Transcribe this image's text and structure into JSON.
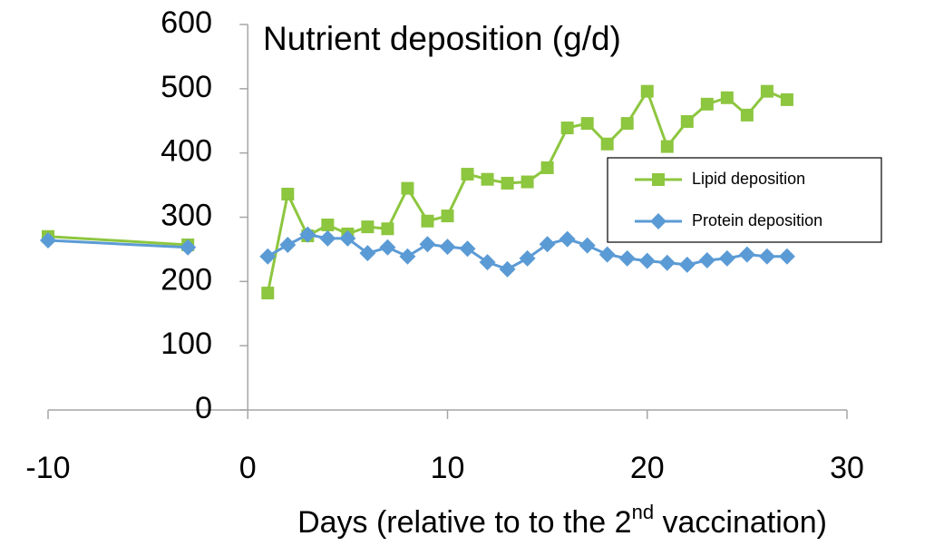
{
  "chart_data": {
    "type": "line",
    "title": "Nutrient deposition (g/d)",
    "xlabel": {
      "main": "Days (relative to to the 2",
      "sup": "nd",
      "rest": " vaccination)"
    },
    "x": [
      -10,
      -3,
      null,
      1,
      2,
      3,
      4,
      5,
      6,
      7,
      8,
      9,
      10,
      11,
      12,
      13,
      14,
      15,
      16,
      17,
      18,
      19,
      20,
      21,
      22,
      23,
      24,
      25,
      26,
      27
    ],
    "series": [
      {
        "name": "Lipid deposition",
        "color": "#8dc63f",
        "marker": "square",
        "values": [
          270,
          257,
          null,
          182,
          336,
          271,
          288,
          274,
          285,
          282,
          345,
          294,
          302,
          367,
          359,
          353,
          355,
          377,
          439,
          446,
          414,
          446,
          496,
          410,
          449,
          476,
          486,
          459,
          496,
          483
        ]
      },
      {
        "name": "Protein deposition",
        "color": "#5b9bd5",
        "marker": "diamond",
        "values": [
          264,
          253,
          null,
          239,
          257,
          273,
          267,
          267,
          244,
          253,
          239,
          258,
          254,
          251,
          230,
          219,
          236,
          258,
          266,
          256,
          242,
          236,
          232,
          229,
          226,
          233,
          236,
          242,
          239,
          239
        ]
      }
    ],
    "xlim": [
      -10,
      30
    ],
    "xticks": [
      -10,
      0,
      10,
      20,
      30
    ],
    "ylim": [
      0,
      600
    ],
    "yticks": [
      0,
      100,
      200,
      300,
      400,
      500,
      600
    ],
    "grid": false,
    "legend": "right"
  }
}
